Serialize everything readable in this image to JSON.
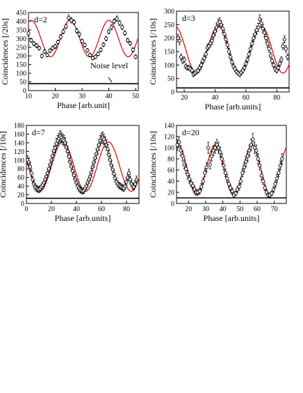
{
  "chart_data": [
    {
      "type": "scatter",
      "panel_label": "d=2",
      "xlabel": "Phase [arb.unit]",
      "ylabel": "Coincidences [/20s]",
      "xlim": [
        10,
        51
      ],
      "ylim": [
        0,
        450
      ],
      "xticks": [
        10,
        20,
        30,
        40,
        50
      ],
      "yticks": [
        0,
        50,
        100,
        150,
        200,
        250,
        300,
        350,
        400,
        450
      ],
      "noise_level": 40,
      "noise_label": "Noise level",
      "fit": {
        "mean": 300,
        "amp": 105,
        "period": 14.5,
        "peak": 25.5
      },
      "points": {
        "x": [
          10,
          11,
          12,
          13,
          14,
          15,
          16,
          17,
          18,
          19,
          20,
          21,
          22,
          23,
          24,
          25,
          26,
          27,
          28,
          29,
          30,
          31,
          32,
          33,
          34,
          35,
          36,
          37,
          38,
          39,
          40,
          41,
          42,
          43,
          44,
          45,
          46,
          47,
          48,
          49,
          50
        ],
        "y": [
          330,
          290,
          270,
          260,
          245,
          200,
          225,
          205,
          230,
          245,
          255,
          280,
          310,
          340,
          370,
          420,
          405,
          395,
          345,
          325,
          285,
          262,
          232,
          205,
          188,
          195,
          212,
          235,
          265,
          300,
          340,
          365,
          400,
          415,
          390,
          365,
          332,
          290,
          272,
          235,
          195
        ],
        "err": [
          14,
          12,
          12,
          12,
          11,
          11,
          11,
          11,
          11,
          12,
          12,
          12,
          13,
          13,
          14,
          15,
          15,
          14,
          13,
          13,
          12,
          12,
          11,
          11,
          11,
          11,
          11,
          12,
          12,
          13,
          13,
          14,
          14,
          15,
          14,
          14,
          13,
          12,
          12,
          12,
          11
        ]
      }
    },
    {
      "type": "scatter",
      "panel_label": "d=3",
      "xlabel": "Phase [arb.units]",
      "ylabel": "Coincidences [/10s]",
      "xlim": [
        15,
        88
      ],
      "ylim": [
        0,
        300
      ],
      "xticks": [
        20,
        40,
        60,
        80
      ],
      "yticks": [
        0,
        50,
        100,
        150,
        200,
        250,
        300
      ],
      "noise_level": 15,
      "fit": {
        "mean": 157,
        "amp": 87,
        "period": 28,
        "peak": 42
      },
      "points": {
        "x": [
          16,
          17,
          18,
          19,
          20,
          21,
          22,
          23,
          24,
          25,
          26,
          27,
          28,
          29,
          30,
          31,
          32,
          33,
          34,
          35,
          36,
          37,
          38,
          39,
          40,
          41,
          42,
          43,
          44,
          45,
          46,
          47,
          48,
          49,
          50,
          51,
          52,
          53,
          54,
          55,
          56,
          57,
          58,
          59,
          60,
          61,
          62,
          63,
          64,
          65,
          66,
          67,
          68,
          69,
          70,
          71,
          72,
          73,
          74,
          75,
          76,
          77,
          78,
          79,
          80,
          81,
          82,
          83,
          84,
          85,
          86,
          87
        ],
        "y": [
          200,
          190,
          130,
          115,
          120,
          95,
          90,
          90,
          85,
          80,
          65,
          70,
          75,
          80,
          90,
          100,
          115,
          125,
          140,
          165,
          170,
          180,
          190,
          210,
          225,
          240,
          255,
          260,
          250,
          235,
          215,
          195,
          175,
          150,
          130,
          110,
          95,
          85,
          75,
          70,
          65,
          72,
          80,
          90,
          105,
          120,
          140,
          160,
          180,
          200,
          215,
          230,
          240,
          270,
          255,
          235,
          220,
          200,
          180,
          160,
          135,
          115,
          100,
          85,
          80,
          90,
          105,
          120,
          170,
          195,
          160,
          130
        ],
        "err": [
          14,
          14,
          11,
          10,
          10,
          9,
          9,
          9,
          9,
          9,
          8,
          8,
          8,
          9,
          9,
          10,
          10,
          11,
          11,
          12,
          12,
          12,
          13,
          13,
          14,
          14,
          15,
          15,
          15,
          14,
          14,
          13,
          13,
          12,
          11,
          10,
          9,
          9,
          8,
          8,
          8,
          8,
          9,
          9,
          10,
          10,
          11,
          12,
          12,
          13,
          14,
          14,
          15,
          16,
          15,
          15,
          14,
          14,
          13,
          12,
          11,
          10,
          10,
          9,
          9,
          9,
          10,
          10,
          12,
          13,
          12,
          11
        ]
      }
    },
    {
      "type": "scatter",
      "panel_label": "d=7",
      "xlabel": "Phase [arb.units]",
      "ylabel": "Coincidences [/10s]",
      "xlim": [
        0,
        90
      ],
      "ylim": [
        0,
        180
      ],
      "xticks": [
        0,
        20,
        40,
        60,
        80
      ],
      "yticks": [
        0,
        20,
        40,
        60,
        80,
        100,
        120,
        140,
        160,
        180
      ],
      "noise_level": 12,
      "fit": {
        "mean": 85,
        "amp": 57,
        "period": 36.5,
        "peak": 29
      },
      "points": {
        "x": [
          1,
          2,
          3,
          4,
          5,
          6,
          7,
          8,
          9,
          10,
          11,
          12,
          13,
          14,
          15,
          16,
          17,
          18,
          19,
          20,
          21,
          22,
          23,
          24,
          25,
          26,
          27,
          28,
          29,
          30,
          31,
          32,
          33,
          34,
          35,
          36,
          37,
          38,
          39,
          40,
          41,
          42,
          43,
          44,
          45,
          46,
          47,
          48,
          49,
          50,
          51,
          52,
          53,
          54,
          55,
          56,
          57,
          58,
          59,
          60,
          61,
          62,
          63,
          64,
          65,
          66,
          67,
          68,
          69,
          70,
          71,
          72,
          73,
          74,
          75,
          76,
          77,
          78,
          79,
          80,
          81,
          82,
          83,
          84,
          85,
          86,
          87,
          88
        ],
        "y": [
          100,
          95,
          85,
          70,
          55,
          45,
          38,
          35,
          33,
          32,
          34,
          38,
          42,
          48,
          55,
          62,
          70,
          80,
          90,
          100,
          110,
          122,
          128,
          138,
          145,
          150,
          155,
          152,
          148,
          145,
          140,
          130,
          120,
          108,
          95,
          85,
          75,
          65,
          55,
          48,
          40,
          35,
          32,
          30,
          28,
          30,
          35,
          40,
          48,
          55,
          62,
          72,
          85,
          95,
          105,
          115,
          125,
          135,
          145,
          150,
          152,
          148,
          142,
          135,
          125,
          112,
          100,
          88,
          78,
          68,
          58,
          50,
          45,
          42,
          40,
          38,
          36,
          35,
          40,
          50,
          60,
          70,
          55,
          45,
          40,
          38,
          45,
          55
        ],
        "err": [
          10,
          10,
          9,
          9,
          8,
          8,
          7,
          7,
          7,
          7,
          7,
          7,
          7,
          8,
          8,
          8,
          9,
          9,
          10,
          10,
          11,
          11,
          11,
          12,
          12,
          12,
          13,
          12,
          12,
          12,
          12,
          11,
          11,
          10,
          10,
          9,
          9,
          8,
          8,
          7,
          7,
          7,
          7,
          7,
          6,
          7,
          7,
          7,
          8,
          8,
          8,
          9,
          9,
          10,
          10,
          11,
          11,
          12,
          12,
          12,
          13,
          12,
          12,
          12,
          11,
          11,
          10,
          10,
          9,
          8,
          8,
          7,
          7,
          7,
          7,
          7,
          7,
          7,
          7,
          8,
          8,
          9,
          8,
          7,
          7,
          7,
          7,
          8
        ]
      }
    },
    {
      "type": "scatter",
      "panel_label": "d=20",
      "xlabel": "Phase [arb.units]",
      "ylabel": "Coincidences [/10s]",
      "xlim": [
        13,
        77
      ],
      "ylim": [
        0,
        140
      ],
      "xticks": [
        20,
        30,
        40,
        50,
        60,
        70
      ],
      "yticks": [
        0,
        20,
        40,
        60,
        80,
        100,
        120,
        140
      ],
      "noise_level": 10,
      "fit": {
        "mean": 60,
        "amp": 45,
        "period": 21.5,
        "peak": 35.5
      },
      "points": {
        "x": [
          13.5,
          14.5,
          15.5,
          16.5,
          17.5,
          18.5,
          19.5,
          20.5,
          21.5,
          22.5,
          23.5,
          24.5,
          25.5,
          26.5,
          27.5,
          28.5,
          29.5,
          30.5,
          31.5,
          32.5,
          33.5,
          34.5,
          35.5,
          36.5,
          37.5,
          38.5,
          39.5,
          40.5,
          41.5,
          42.5,
          43.5,
          44.5,
          45.5,
          46.5,
          47.5,
          48.5,
          49.5,
          50.5,
          51.5,
          52.5,
          53.5,
          54.5,
          55.5,
          56.5,
          57.5,
          58.5,
          59.5,
          60.5,
          61.5,
          62.5,
          63.5,
          64.5,
          65.5,
          66.5,
          67.5,
          68.5,
          69.5,
          70.5,
          71.5,
          72.5,
          73.5,
          74.5
        ],
        "y": [
          105,
          110,
          95,
          85,
          70,
          62,
          52,
          44,
          36,
          32,
          25,
          20,
          20,
          22,
          30,
          40,
          55,
          65,
          100,
          70,
          85,
          95,
          100,
          105,
          100,
          92,
          80,
          68,
          55,
          45,
          35,
          28,
          22,
          15,
          18,
          25,
          30,
          40,
          55,
          65,
          75,
          85,
          95,
          105,
          115,
          100,
          95,
          80,
          68,
          50,
          40,
          28,
          20,
          15,
          15,
          18,
          25,
          35,
          45,
          55,
          68,
          80
        ],
        "err": [
          10,
          10,
          9,
          9,
          8,
          8,
          7,
          7,
          6,
          6,
          5,
          5,
          5,
          5,
          6,
          6,
          7,
          8,
          10,
          8,
          9,
          9,
          10,
          10,
          10,
          9,
          9,
          8,
          7,
          7,
          6,
          5,
          5,
          4,
          4,
          5,
          6,
          6,
          7,
          8,
          9,
          9,
          10,
          10,
          11,
          10,
          10,
          9,
          8,
          7,
          6,
          5,
          5,
          4,
          4,
          4,
          5,
          6,
          7,
          7,
          8,
          9
        ]
      }
    }
  ]
}
